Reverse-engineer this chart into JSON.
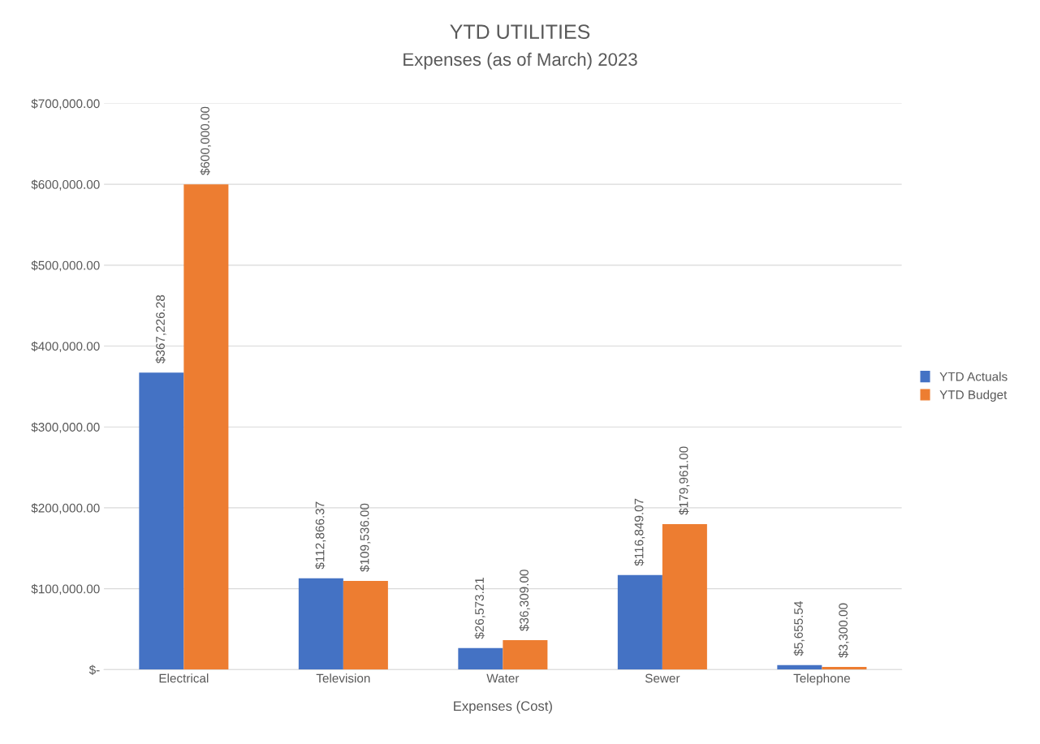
{
  "chart_data": {
    "type": "bar",
    "title": "YTD UTILITIES",
    "subtitle": "Expenses (as of March) 2023",
    "xlabel": "Expenses (Cost)",
    "categories": [
      "Electrical",
      "Television",
      "Water",
      "Sewer",
      "Telephone"
    ],
    "series": [
      {
        "name": "YTD Actuals",
        "color": "#4472c4",
        "values": [
          367226.28,
          112866.37,
          26573.21,
          116849.07,
          5655.54
        ],
        "value_labels": [
          "$367,226.28",
          "$112,866.37",
          "$26,573.21",
          "$116,849.07",
          "$5,655.54"
        ]
      },
      {
        "name": "YTD Budget",
        "color": "#ed7d31",
        "values": [
          600000,
          109536,
          36309,
          179961,
          3300
        ],
        "value_labels": [
          "$600,000.00",
          "$109,536.00",
          "$36,309.00",
          "$179,961.00",
          "$3,300.00"
        ]
      }
    ],
    "ylim": [
      0,
      700000
    ],
    "yticks": [
      {
        "value": 0,
        "label": "$-"
      },
      {
        "value": 100000,
        "label": "$100,000.00"
      },
      {
        "value": 200000,
        "label": "$200,000.00"
      },
      {
        "value": 300000,
        "label": "$300,000.00"
      },
      {
        "value": 400000,
        "label": "$400,000.00"
      },
      {
        "value": 500000,
        "label": "$500,000.00"
      },
      {
        "value": 600000,
        "label": "$600,000.00"
      },
      {
        "value": 700000,
        "label": "$700,000.00"
      }
    ],
    "grid": "y",
    "legend": "right"
  }
}
